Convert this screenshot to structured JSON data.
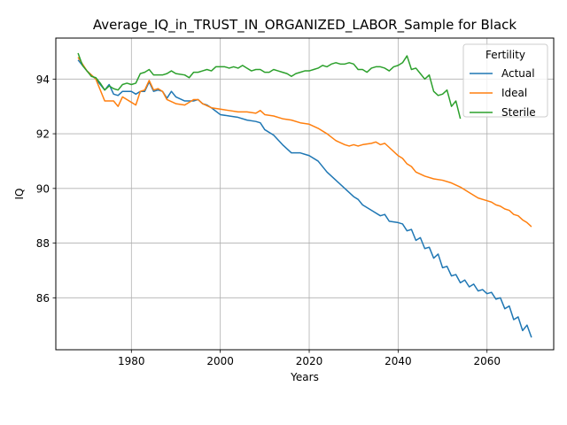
{
  "chart_data": {
    "type": "line",
    "title": "Average_IQ_in_TRUST_IN_ORGANIZED_LABOR_Sample for Black",
    "xlabel": "Years",
    "ylabel": "IQ",
    "xlim": [
      1963,
      2075
    ],
    "ylim": [
      84.1,
      95.5
    ],
    "xticks": [
      1980,
      2000,
      2020,
      2040,
      2060
    ],
    "yticks": [
      86,
      88,
      90,
      92,
      94
    ],
    "grid": true,
    "legend": {
      "title": "Fertility",
      "placement": "top-right"
    },
    "series": [
      {
        "name": "Actual",
        "color": "#1f77b4",
        "x": [
          1968,
          1970,
          1972,
          1974,
          1975,
          1976,
          1977,
          1978,
          1980,
          1981,
          1982,
          1983,
          1984,
          1985,
          1986,
          1987,
          1988,
          1989,
          1990,
          1992,
          1994,
          1995,
          1996,
          1997,
          1998,
          2000,
          2002,
          2004,
          2006,
          2008,
          2009,
          2010,
          2012,
          2014,
          2016,
          2018,
          2019,
          2020,
          2022,
          2024,
          2026,
          2028,
          2030,
          2031,
          2032,
          2034,
          2036,
          2037,
          2038,
          2040,
          2041,
          2042,
          2043,
          2044,
          2045,
          2046,
          2047,
          2048,
          2049,
          2050,
          2051,
          2052,
          2053,
          2054,
          2055,
          2056,
          2057,
          2058,
          2059,
          2060,
          2061,
          2062,
          2063,
          2064,
          2065,
          2066,
          2067,
          2068,
          2069,
          2070
        ],
        "values": [
          94.7,
          94.3,
          94.0,
          93.6,
          93.8,
          93.45,
          93.4,
          93.55,
          93.55,
          93.45,
          93.55,
          93.55,
          93.9,
          93.55,
          93.6,
          93.55,
          93.3,
          93.55,
          93.35,
          93.2,
          93.2,
          93.25,
          93.1,
          93.05,
          92.95,
          92.7,
          92.65,
          92.6,
          92.5,
          92.45,
          92.4,
          92.15,
          91.95,
          91.6,
          91.3,
          91.3,
          91.25,
          91.2,
          91.0,
          90.6,
          90.3,
          90.0,
          89.7,
          89.6,
          89.4,
          89.2,
          89.0,
          89.05,
          88.8,
          88.75,
          88.7,
          88.45,
          88.5,
          88.1,
          88.2,
          87.8,
          87.85,
          87.45,
          87.6,
          87.1,
          87.15,
          86.8,
          86.85,
          86.55,
          86.65,
          86.4,
          86.5,
          86.25,
          86.3,
          86.15,
          86.2,
          85.95,
          86.0,
          85.6,
          85.7,
          85.2,
          85.3,
          84.8,
          85.0,
          84.55
        ]
      },
      {
        "name": "Ideal",
        "color": "#ff7f0e",
        "x": [
          1968,
          1970,
          1972,
          1974,
          1976,
          1977,
          1978,
          1980,
          1981,
          1982,
          1983,
          1984,
          1985,
          1986,
          1987,
          1988,
          1990,
          1992,
          1994,
          1995,
          1996,
          1998,
          2000,
          2002,
          2004,
          2006,
          2008,
          2009,
          2010,
          2012,
          2014,
          2016,
          2018,
          2020,
          2022,
          2024,
          2026,
          2028,
          2029,
          2030,
          2031,
          2032,
          2034,
          2035,
          2036,
          2037,
          2038,
          2040,
          2041,
          2042,
          2043,
          2044,
          2046,
          2048,
          2050,
          2052,
          2054,
          2056,
          2058,
          2060,
          2061,
          2062,
          2063,
          2064,
          2065,
          2066,
          2067,
          2068,
          2069,
          2070
        ],
        "values": [
          94.8,
          94.3,
          94.0,
          93.2,
          93.2,
          93.0,
          93.35,
          93.15,
          93.05,
          93.55,
          93.6,
          93.95,
          93.6,
          93.65,
          93.55,
          93.25,
          93.1,
          93.05,
          93.25,
          93.25,
          93.1,
          92.95,
          92.9,
          92.85,
          92.8,
          92.8,
          92.75,
          92.85,
          92.7,
          92.65,
          92.55,
          92.5,
          92.4,
          92.35,
          92.2,
          92.0,
          91.75,
          91.6,
          91.55,
          91.6,
          91.55,
          91.6,
          91.65,
          91.7,
          91.6,
          91.65,
          91.5,
          91.2,
          91.1,
          90.9,
          90.8,
          90.6,
          90.45,
          90.35,
          90.3,
          90.2,
          90.05,
          89.85,
          89.65,
          89.55,
          89.5,
          89.4,
          89.35,
          89.25,
          89.2,
          89.05,
          89.0,
          88.85,
          88.75,
          88.6
        ]
      },
      {
        "name": "Sterile",
        "color": "#2ca02c",
        "x": [
          1968,
          1969,
          1970,
          1971,
          1972,
          1973,
          1974,
          1975,
          1976,
          1977,
          1978,
          1979,
          1980,
          1981,
          1982,
          1983,
          1984,
          1985,
          1986,
          1987,
          1988,
          1989,
          1990,
          1992,
          1993,
          1994,
          1995,
          1996,
          1997,
          1998,
          1999,
          2000,
          2001,
          2002,
          2003,
          2004,
          2005,
          2006,
          2007,
          2008,
          2009,
          2010,
          2011,
          2012,
          2013,
          2014,
          2015,
          2016,
          2017,
          2018,
          2019,
          2020,
          2021,
          2022,
          2023,
          2024,
          2025,
          2026,
          2027,
          2028,
          2029,
          2030,
          2031,
          2032,
          2033,
          2034,
          2035,
          2036,
          2037,
          2038,
          2039,
          2040,
          2041,
          2042,
          2043,
          2044,
          2045,
          2046,
          2047,
          2048,
          2049,
          2050,
          2051,
          2052,
          2053,
          2054
        ],
        "values": [
          94.95,
          94.5,
          94.3,
          94.1,
          94.05,
          93.85,
          93.6,
          93.75,
          93.65,
          93.6,
          93.8,
          93.85,
          93.8,
          93.85,
          94.2,
          94.25,
          94.35,
          94.15,
          94.15,
          94.15,
          94.2,
          94.3,
          94.2,
          94.15,
          94.05,
          94.25,
          94.25,
          94.3,
          94.35,
          94.3,
          94.45,
          94.45,
          94.45,
          94.4,
          94.45,
          94.4,
          94.5,
          94.4,
          94.3,
          94.35,
          94.35,
          94.25,
          94.25,
          94.35,
          94.3,
          94.25,
          94.2,
          94.1,
          94.2,
          94.25,
          94.3,
          94.3,
          94.35,
          94.4,
          94.5,
          94.45,
          94.55,
          94.6,
          94.55,
          94.55,
          94.6,
          94.55,
          94.35,
          94.35,
          94.25,
          94.4,
          94.45,
          94.45,
          94.4,
          94.3,
          94.45,
          94.5,
          94.6,
          94.85,
          94.35,
          94.4,
          94.2,
          94.0,
          94.15,
          93.55,
          93.4,
          93.45,
          93.6,
          93.0,
          93.2,
          92.55
        ]
      }
    ]
  }
}
